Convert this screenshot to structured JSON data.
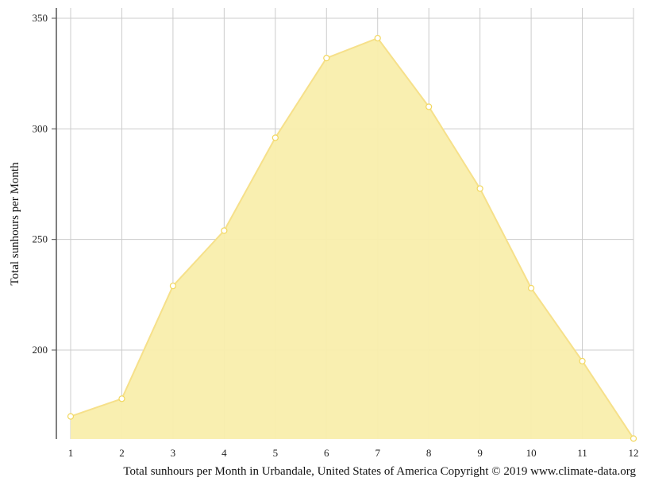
{
  "chart_data": {
    "type": "area",
    "x": [
      1,
      2,
      3,
      4,
      5,
      6,
      7,
      8,
      9,
      10,
      11,
      12
    ],
    "series": [
      {
        "values": [
          170,
          178,
          229,
          254,
          296,
          332,
          341,
          310,
          273,
          228,
          195,
          160
        ]
      }
    ],
    "ylabel": "Total sunhours per Month",
    "caption": "Total sunhours per Month in Urbandale, United States of America Copyright © 2019 www.climate-data.org",
    "y_ticks": [
      200,
      250,
      300,
      350
    ],
    "x_ticks": [
      1,
      2,
      3,
      4,
      5,
      6,
      7,
      8,
      9,
      10,
      11,
      12
    ],
    "ylim": [
      160,
      354
    ],
    "xlim": [
      1,
      12
    ],
    "grid": true,
    "colors": {
      "fill": "#f9eeac",
      "line": "#f6e08a",
      "marker_fill": "#ffffff",
      "marker_stroke": "#f2d75e",
      "grid": "#cccccc",
      "axis": "#555555"
    }
  }
}
